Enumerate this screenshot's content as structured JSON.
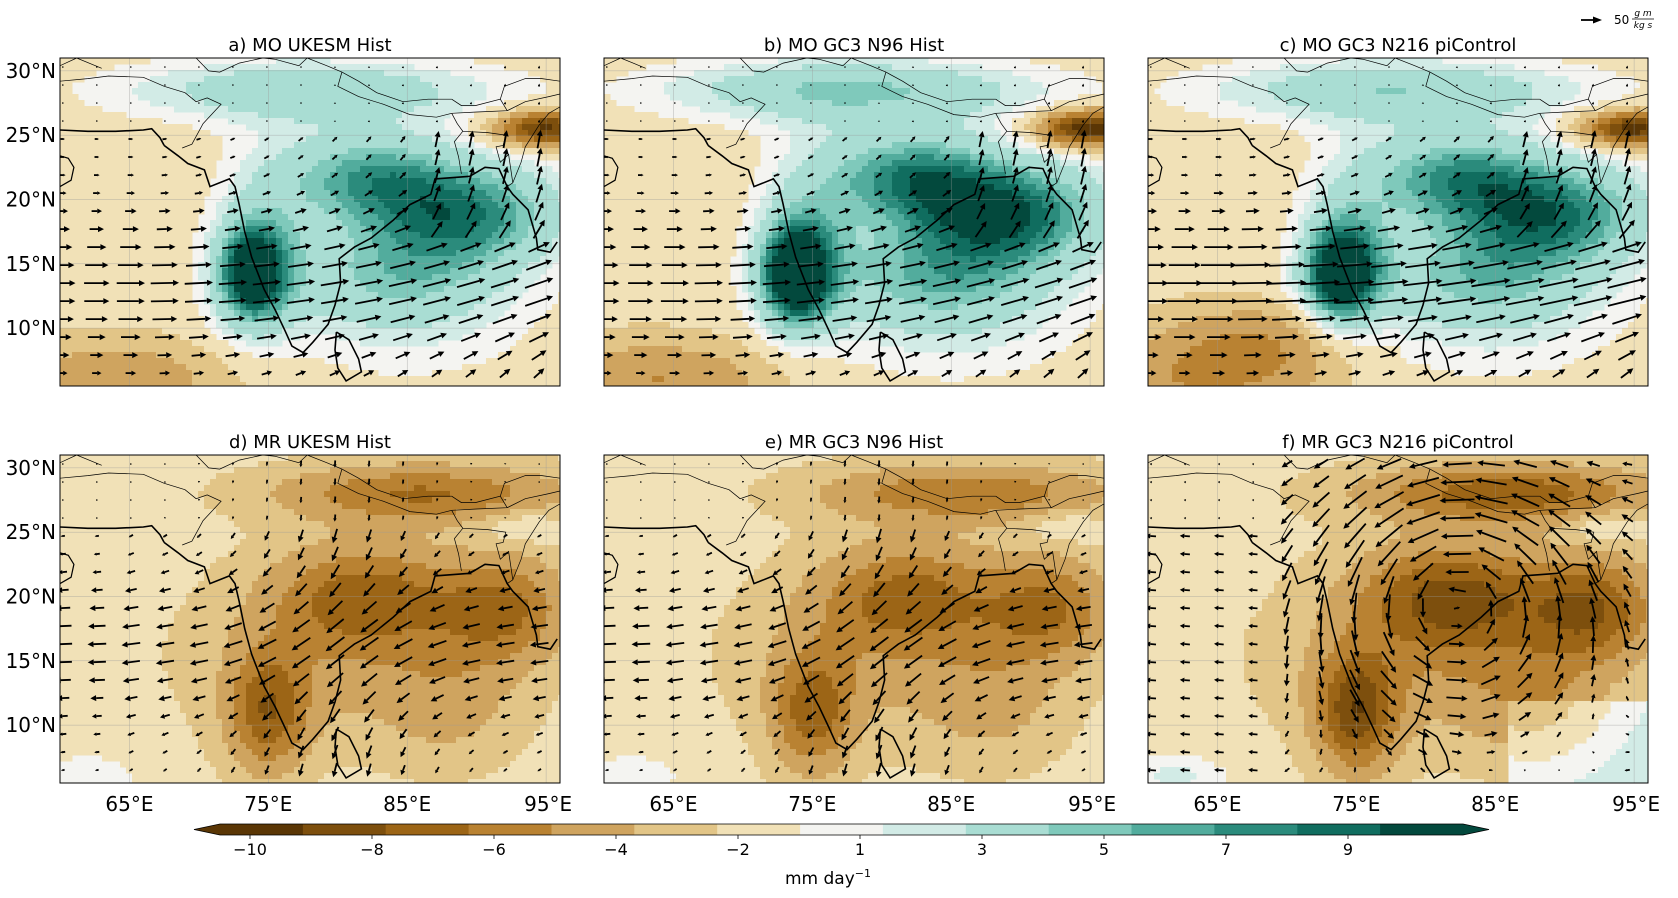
{
  "figure": {
    "panels": [
      {
        "id": "a",
        "title": "a) MO UKESM Hist",
        "field": "pos",
        "wind": "onshore",
        "strength": 1.0
      },
      {
        "id": "b",
        "title": "b) MO GC3 N96 Hist",
        "field": "pos",
        "wind": "onshore",
        "strength": 1.15
      },
      {
        "id": "c",
        "title": "c) MO GC3 N216 piControl",
        "field": "pos",
        "wind": "onshore_strong",
        "strength": 1.05
      },
      {
        "id": "d",
        "title": "d) MR UKESM Hist",
        "field": "neg",
        "wind": "reverse",
        "strength": 0.95
      },
      {
        "id": "e",
        "title": "e) MR GC3 N96 Hist",
        "field": "neg",
        "wind": "reverse",
        "strength": 0.9
      },
      {
        "id": "f",
        "title": "f) MR GC3 N216 piControl",
        "field": "neg",
        "wind": "cyclonic",
        "strength": 1.15
      }
    ],
    "y_ticks": [
      "30°N",
      "25°N",
      "20°N",
      "15°N",
      "10°N"
    ],
    "x_ticks": [
      "65°E",
      "75°E",
      "85°E",
      "95°E"
    ],
    "reference_vector": {
      "value": "50",
      "numerator": "g m",
      "denominator": "kg s"
    },
    "colorbar": {
      "tick_labels": [
        "−10",
        "−8",
        "−6",
        "−4",
        "−2",
        "1",
        "3",
        "5",
        "7",
        "9"
      ],
      "unit_label": "mm day",
      "unit_exponent": "−1",
      "colors": [
        "#5a3605",
        "#7d4f0d",
        "#9c6516",
        "#b98232",
        "#cfa45f",
        "#e2c587",
        "#f1e1b7",
        "#f4f4f1",
        "#d2ebe6",
        "#a9ddd3",
        "#7fc9bb",
        "#52ac9d",
        "#2b8b7c",
        "#106d5f",
        "#03493d"
      ]
    }
  }
}
